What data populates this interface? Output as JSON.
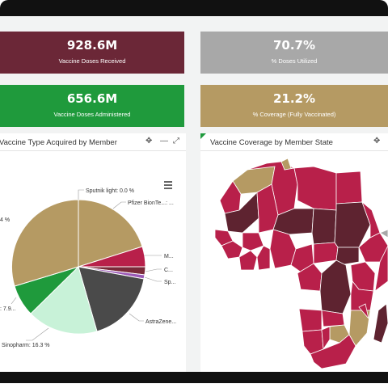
{
  "kpis": {
    "received": {
      "value": "928.6M",
      "label": "Vaccine Doses Received"
    },
    "utilized": {
      "value": "70.7%",
      "label": "% Doses Utilized"
    },
    "administered": {
      "value": "656.6M",
      "label": "Vaccine Doses Administered"
    },
    "coverage": {
      "value": "21.2%",
      "label": "% Coverage (Fully Vaccinated)"
    }
  },
  "pie_panel": {
    "title": "ortion of Vaccine Type Acquired by Member"
  },
  "map_panel": {
    "title": "Vaccine Coverage by Member State"
  },
  "header_icons": {
    "move": "move-icon",
    "minimize": "minimize-icon",
    "expand": "expand-icon",
    "menu": "hamburger-menu-icon"
  },
  "colors": {
    "maroon": "#6b2737",
    "gray": "#a8a8a8",
    "green": "#1f9a3c",
    "tan": "#b59a63",
    "crimson": "#b8204a",
    "darkmaroon": "#5e2330",
    "charcoal": "#4a4a4a",
    "mint": "#c8f2d8"
  },
  "chart_data": {
    "type": "pie",
    "slices": [
      {
        "label": "Sputnik light: 0.0 %",
        "value": 0.0,
        "color": "#e0e0e0"
      },
      {
        "label": "Pfizer BionTe...: ...",
        "value": null,
        "color": "#b8204a"
      },
      {
        "label": "M...",
        "value": null,
        "color": "#b8204a"
      },
      {
        "label": "C...",
        "value": null,
        "color": "#7a2a3a"
      },
      {
        "label": "Sp...",
        "value": null,
        "color": "#9b59b6"
      },
      {
        "label": "AstraZene...",
        "value": null,
        "color": "#4a4a4a"
      },
      {
        "label": "Sinopharm: 16.3 %",
        "value": 16.3,
        "color": "#c8f2d8"
      },
      {
        "label": ": 7.9...",
        "value": 7.9,
        "color": "#1f9a3c"
      },
      {
        "label": "4 %",
        "value": null,
        "color": "#b59a63"
      }
    ]
  }
}
